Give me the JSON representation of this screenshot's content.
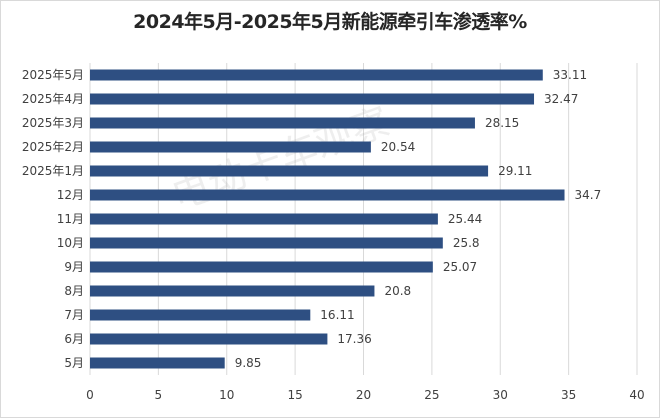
{
  "chart_data": {
    "type": "bar",
    "orientation": "horizontal",
    "title": "2024年5月-2025年5月新能源牵引车渗透率%",
    "xlabel": "",
    "ylabel": "",
    "xlim": [
      0,
      40
    ],
    "x_ticks": [
      "0",
      "5",
      "10",
      "15",
      "20",
      "25",
      "30",
      "35",
      "40"
    ],
    "grid": "vertical",
    "legend": "none",
    "bar_color": "#2e4f82",
    "categories": [
      "2025年5月",
      "2025年4月",
      "2025年3月",
      "2025年2月",
      "2025年1月",
      "12月",
      "11月",
      "10月",
      "9月",
      "8月",
      "7月",
      "6月",
      "5月"
    ],
    "values": [
      33.11,
      32.47,
      28.15,
      20.54,
      29.11,
      34.7,
      25.44,
      25.8,
      25.07,
      20.8,
      16.11,
      17.36,
      9.85
    ],
    "value_labels": [
      "33.11",
      "32.47",
      "28.15",
      "20.54",
      "29.11",
      "34.7",
      "25.44",
      "25.8",
      "25.07",
      "20.8",
      "16.11",
      "17.36",
      "9.85"
    ]
  },
  "watermark": "电动卡车观察"
}
